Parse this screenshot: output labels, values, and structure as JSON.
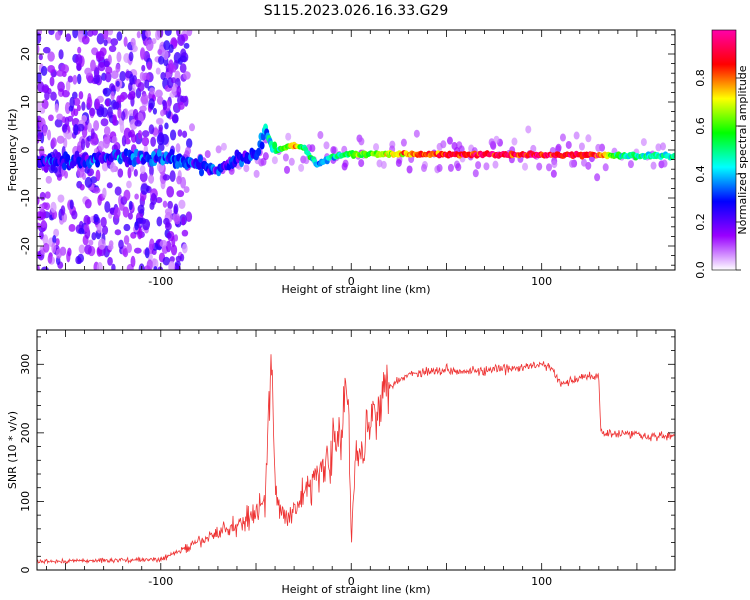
{
  "title": "S115.2023.026.16.33.G29",
  "chart_data": [
    {
      "type": "heatmap",
      "xlabel": "Height of straight line (km)",
      "ylabel": "Frequency (Hz)",
      "xlim": [
        -165,
        170
      ],
      "ylim": [
        -25,
        25
      ],
      "xticks": [
        -100,
        0,
        100
      ],
      "yticks": [
        -20,
        -10,
        0,
        10,
        20
      ],
      "colorbar": {
        "label": "Normalized spectral amplitude",
        "ticks": [
          "0.0",
          "0.2",
          "0.4",
          "0.6",
          "0.8"
        ],
        "range": [
          0,
          1
        ],
        "colors": [
          "#ffffff",
          "#9900ff",
          "#0000ff",
          "#00ffff",
          "#00ff00",
          "#ffff00",
          "#ff0000",
          "#ff00aa"
        ]
      },
      "ridge": [
        {
          "x": -165,
          "y": -2.8,
          "amp": 0.25
        },
        {
          "x": -140,
          "y": -2.0,
          "amp": 0.25
        },
        {
          "x": -120,
          "y": -1.5,
          "amp": 0.3
        },
        {
          "x": -100,
          "y": -2.0,
          "amp": 0.3
        },
        {
          "x": -80,
          "y": -3.0,
          "amp": 0.3
        },
        {
          "x": -70,
          "y": -4.0,
          "amp": 0.25
        },
        {
          "x": -60,
          "y": -2.0,
          "amp": 0.25
        },
        {
          "x": -50,
          "y": -1.0,
          "amp": 0.3
        },
        {
          "x": -45,
          "y": 4.0,
          "amp": 0.35
        },
        {
          "x": -40,
          "y": 0.0,
          "amp": 0.45
        },
        {
          "x": -30,
          "y": 1.0,
          "amp": 0.75
        },
        {
          "x": -25,
          "y": 0.5,
          "amp": 0.55
        },
        {
          "x": -18,
          "y": -3.0,
          "amp": 0.4
        },
        {
          "x": -10,
          "y": -1.5,
          "amp": 0.45
        },
        {
          "x": 0,
          "y": -0.8,
          "amp": 0.55
        },
        {
          "x": 20,
          "y": -0.8,
          "amp": 0.7
        },
        {
          "x": 40,
          "y": -0.9,
          "amp": 0.85
        },
        {
          "x": 80,
          "y": -1.0,
          "amp": 0.9
        },
        {
          "x": 110,
          "y": -1.0,
          "amp": 0.9
        },
        {
          "x": 130,
          "y": -1.0,
          "amp": 0.88
        },
        {
          "x": 140,
          "y": -1.2,
          "amp": 0.5
        },
        {
          "x": 170,
          "y": -1.3,
          "amp": 0.45
        }
      ]
    },
    {
      "type": "line",
      "xlabel": "Height of straight line (km)",
      "ylabel": "SNR (10 * v/v)",
      "xlim": [
        -165,
        170
      ],
      "ylim": [
        0,
        350
      ],
      "xticks": [
        -100,
        0,
        100
      ],
      "yticks": [
        0,
        100,
        200,
        300
      ],
      "color": "#ee3333",
      "series": [
        {
          "x": [
            -165,
            -150,
            -130,
            -110,
            -100,
            -90,
            -80,
            -70,
            -60,
            -50,
            -45,
            -42,
            -40,
            -38,
            -35,
            -30,
            -25,
            -20,
            -15,
            -10,
            -5,
            -3,
            -1,
            0,
            2,
            5,
            8,
            10,
            15,
            20,
            30,
            40,
            50,
            60,
            70,
            80,
            90,
            100,
            105,
            110,
            120,
            130,
            131,
            140,
            150,
            160,
            170
          ],
          "y": [
            12,
            13,
            14,
            15,
            15,
            28,
            40,
            55,
            65,
            85,
            110,
            300,
            120,
            95,
            75,
            90,
            110,
            130,
            155,
            175,
            195,
            270,
            200,
            30,
            160,
            170,
            210,
            220,
            250,
            270,
            285,
            290,
            292,
            291,
            290,
            293,
            295,
            300,
            295,
            270,
            280,
            285,
            200,
            200,
            198,
            195,
            195
          ]
        }
      ]
    }
  ]
}
